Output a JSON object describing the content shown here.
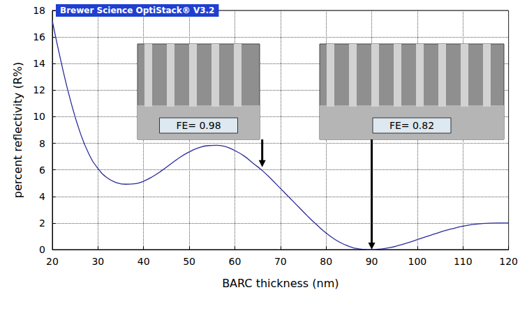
{
  "chart_data": {
    "type": "line",
    "title": "Brewer Science OptiStack® V3.2",
    "x_label": "BARC thickness (nm)",
    "y_label": "percent reflectivity (R%)",
    "x": [
      20,
      22,
      24,
      26,
      28,
      30,
      32,
      34,
      36,
      38,
      40,
      42,
      44,
      46,
      48,
      50,
      52,
      54,
      56,
      58,
      60,
      62,
      64,
      66,
      68,
      70,
      72,
      74,
      76,
      78,
      80,
      82,
      84,
      86,
      88,
      90,
      92,
      94,
      96,
      98,
      100,
      102,
      104,
      106,
      108,
      110,
      112,
      114,
      116,
      118,
      120
    ],
    "values": [
      17.2,
      14.0,
      11.2,
      8.9,
      7.2,
      6.1,
      5.4,
      5.05,
      4.92,
      4.95,
      5.15,
      5.5,
      5.95,
      6.45,
      6.95,
      7.35,
      7.65,
      7.82,
      7.85,
      7.75,
      7.45,
      7.05,
      6.5,
      5.95,
      5.3,
      4.6,
      3.9,
      3.2,
      2.5,
      1.85,
      1.25,
      0.75,
      0.38,
      0.13,
      0.02,
      0.0,
      0.05,
      0.15,
      0.32,
      0.52,
      0.75,
      0.98,
      1.2,
      1.42,
      1.6,
      1.76,
      1.88,
      1.95,
      1.99,
      2.0,
      2.0
    ],
    "color": "#2b2b9c",
    "xlim": [
      20,
      120
    ],
    "xticks": [
      20,
      30,
      40,
      50,
      60,
      70,
      80,
      90,
      100,
      110,
      120
    ],
    "ylim": [
      0,
      18
    ],
    "yticks": [
      0,
      2,
      4,
      6,
      8,
      10,
      12,
      14,
      16,
      18
    ],
    "grid": true,
    "annotations": [
      {
        "text": "FE= 0.98",
        "x": 66,
        "y": 6.2
      },
      {
        "text": "FE= 0.82",
        "x": 90,
        "y": 0
      }
    ]
  }
}
